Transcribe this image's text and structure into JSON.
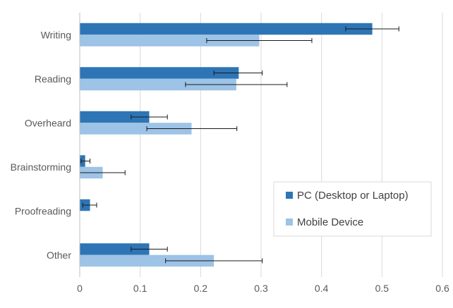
{
  "chart_data": {
    "type": "bar",
    "orientation": "horizontal",
    "categories": [
      "Writing",
      "Reading",
      "Overheard",
      "Brainstorming",
      "Proofreading",
      "Other"
    ],
    "series": [
      {
        "name": "PC (Desktop or Laptop)",
        "color": "#2e75b6",
        "values": [
          0.484,
          0.263,
          0.115,
          0.009,
          0.017,
          0.115
        ],
        "error_low": [
          0.44,
          0.222,
          0.085,
          0.002,
          0.005,
          0.085
        ],
        "error_high": [
          0.528,
          0.302,
          0.145,
          0.017,
          0.028,
          0.145
        ]
      },
      {
        "name": "Mobile Device",
        "color": "#9dc3e6",
        "values": [
          0.297,
          0.259,
          0.185,
          0.038,
          0.0,
          0.222
        ],
        "error_low": [
          0.21,
          0.175,
          0.111,
          0.0,
          null,
          0.142
        ],
        "error_high": [
          0.384,
          0.343,
          0.26,
          0.075,
          null,
          0.302
        ]
      }
    ],
    "xlim": [
      0,
      0.6
    ],
    "xticks": [
      "0",
      "0.1",
      "0.2",
      "0.3",
      "0.4",
      "0.5",
      "0.6"
    ],
    "grid": true,
    "legend_position": "lower-right",
    "title": "",
    "xlabel": "",
    "ylabel": ""
  }
}
